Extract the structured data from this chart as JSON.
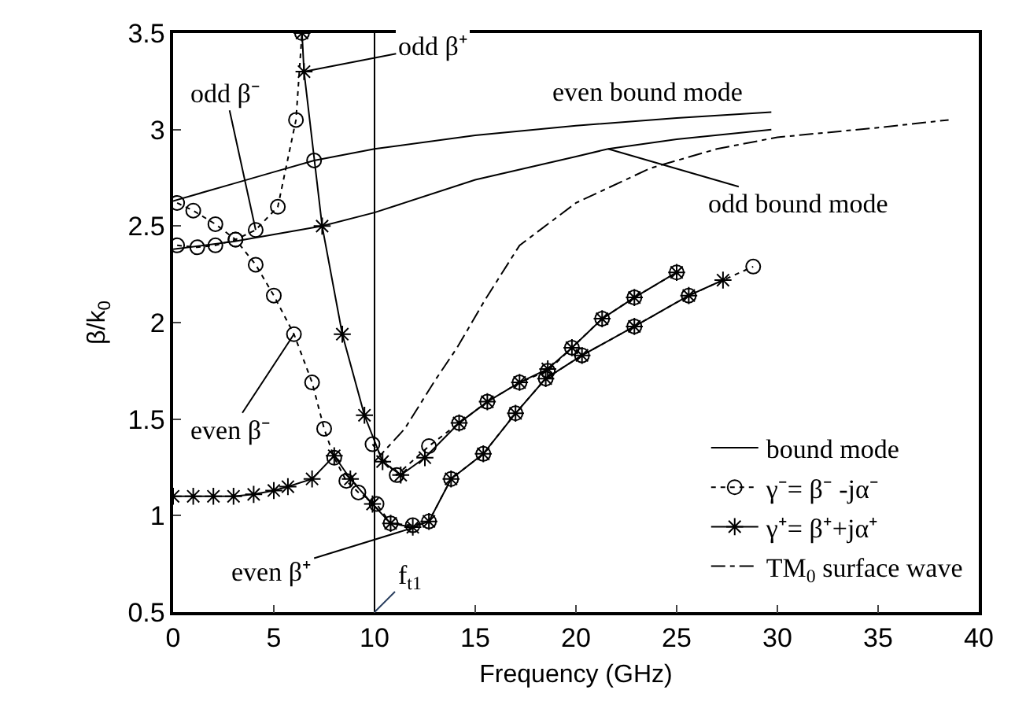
{
  "chart_data": {
    "type": "line",
    "xlabel": "Frequency (GHz)",
    "ylabel": "β/k$_{0}$",
    "xlim": [
      0,
      40
    ],
    "xticks": [
      0,
      5,
      10,
      15,
      20,
      25,
      30,
      35,
      40
    ],
    "ylim": [
      0.5,
      3.5
    ],
    "yticks": [
      0.5,
      1,
      1.5,
      2,
      2.5,
      3,
      3.5
    ],
    "legend": "bottom right",
    "series": [
      {
        "name": "bound mode",
        "color": "#000000",
        "marker": "none",
        "line_style": "solid",
        "x": [
          0,
          3,
          5,
          7,
          10,
          15,
          20,
          25,
          29.7
        ],
        "values": [
          2.63,
          2.72,
          2.78,
          2.84,
          2.9,
          2.97,
          3.02,
          3.06,
          3.09
        ]
      },
      {
        "color": "#000000",
        "marker": "none",
        "line_style": "solid",
        "x": [
          0,
          3,
          7.4,
          10,
          15,
          20,
          21.6,
          25,
          29.7
        ],
        "values": [
          2.38,
          2.42,
          2.5,
          2.57,
          2.74,
          2.86,
          2.9,
          2.95,
          3.0
        ]
      },
      {
        "name": "γ⁻= β⁻ -jα⁻",
        "color": "#000000",
        "marker": "circle",
        "line_style": "dotted",
        "x": [
          0.2,
          1.2,
          2.1,
          3.1,
          4.1,
          5.2,
          6.1,
          6.4
        ],
        "values": [
          2.4,
          2.39,
          2.4,
          2.43,
          2.48,
          2.6,
          3.05,
          3.5
        ]
      },
      {
        "color": "#000000",
        "marker": "circle",
        "line_style": "dotted",
        "x": [
          0.2,
          1,
          2.1,
          3.1,
          4.1,
          5,
          6,
          6.9,
          7.5,
          8,
          8.6,
          9.2,
          10.1,
          10.8,
          11.9,
          12.7,
          13.8,
          15.4,
          17,
          18.5,
          20.3,
          22.9,
          25.6,
          28.8
        ],
        "values": [
          2.62,
          2.58,
          2.51,
          2.43,
          2.3,
          2.14,
          1.94,
          1.69,
          1.45,
          1.3,
          1.18,
          1.12,
          1.06,
          0.96,
          0.95,
          0.97,
          1.19,
          1.32,
          1.53,
          1.71,
          1.83,
          1.98,
          2.14,
          2.29
        ]
      },
      {
        "color": "#000000",
        "marker": "circle",
        "line_style": "dotted",
        "x": [
          9.9,
          11.1,
          12.7,
          14.2,
          15.6,
          17.2,
          18.6,
          19.8,
          21.3,
          22.9,
          25
        ],
        "values": [
          1.37,
          1.21,
          1.36,
          1.48,
          1.59,
          1.69,
          1.75,
          1.87,
          2.02,
          2.13,
          2.26
        ]
      },
      {
        "color": "#000000",
        "marker": "circle",
        "line_style": "none",
        "x": [
          7.0
        ],
        "values": [
          2.84
        ]
      },
      {
        "name": "γ⁺= β⁺+jα⁺",
        "color": "#000000",
        "marker": "cross",
        "line_style": "solid",
        "x": [
          6.4,
          6.5,
          7.4,
          8.4,
          9.5,
          10.4,
          11.3,
          12.5,
          14.2,
          15.6,
          17.2,
          18.6,
          19.8,
          21.3,
          22.9,
          25
        ],
        "values": [
          3.5,
          3.3,
          2.5,
          1.94,
          1.52,
          1.28,
          1.21,
          1.3,
          1.48,
          1.59,
          1.69,
          1.76,
          1.87,
          2.02,
          2.13,
          2.26
        ]
      },
      {
        "color": "#000000",
        "marker": "cross",
        "line_style": "solid",
        "x": [
          0,
          1,
          2,
          3,
          4,
          5,
          5.7,
          6.9,
          8,
          8.8,
          9.9,
          10.8,
          11.9,
          12.7,
          13.8,
          15.4,
          17,
          18.5,
          20.3,
          22.9,
          25.6,
          27.3
        ],
        "values": [
          1.1,
          1.1,
          1.1,
          1.1,
          1.11,
          1.13,
          1.15,
          1.19,
          1.31,
          1.19,
          1.06,
          0.96,
          0.94,
          0.97,
          1.19,
          1.32,
          1.53,
          1.71,
          1.83,
          1.98,
          2.14,
          2.22
        ]
      },
      {
        "name": "TM$_{0}$ surface wave",
        "color": "#000000",
        "marker": "none",
        "line_style": "dashed",
        "x": [
          10,
          11.5,
          13,
          14.1,
          15.5,
          17.2,
          20,
          23.7,
          27,
          30,
          35,
          38.5
        ],
        "values": [
          1.28,
          1.45,
          1.7,
          1.87,
          2.12,
          2.4,
          2.62,
          2.8,
          2.9,
          2.96,
          3.01,
          3.05
        ]
      }
    ],
    "ref_lines": [
      {
        "axis": "x",
        "value": 10,
        "label": "f$_{t1}$",
        "color": "#000000",
        "line_style": "solid"
      }
    ],
    "annotations": [
      {
        "text": "odd β⁻",
        "x": 4.1,
        "y": 2.48
      },
      {
        "text": "odd β⁺",
        "x": 6.5,
        "y": 3.3
      },
      "even bound mode",
      {
        "text": "odd bound mode",
        "x": 21.6,
        "y": 2.9
      },
      {
        "text": "even β⁻",
        "x": 6,
        "y": 1.94
      },
      {
        "text": "even β⁺",
        "x": 12,
        "y": 0.94
      }
    ]
  }
}
